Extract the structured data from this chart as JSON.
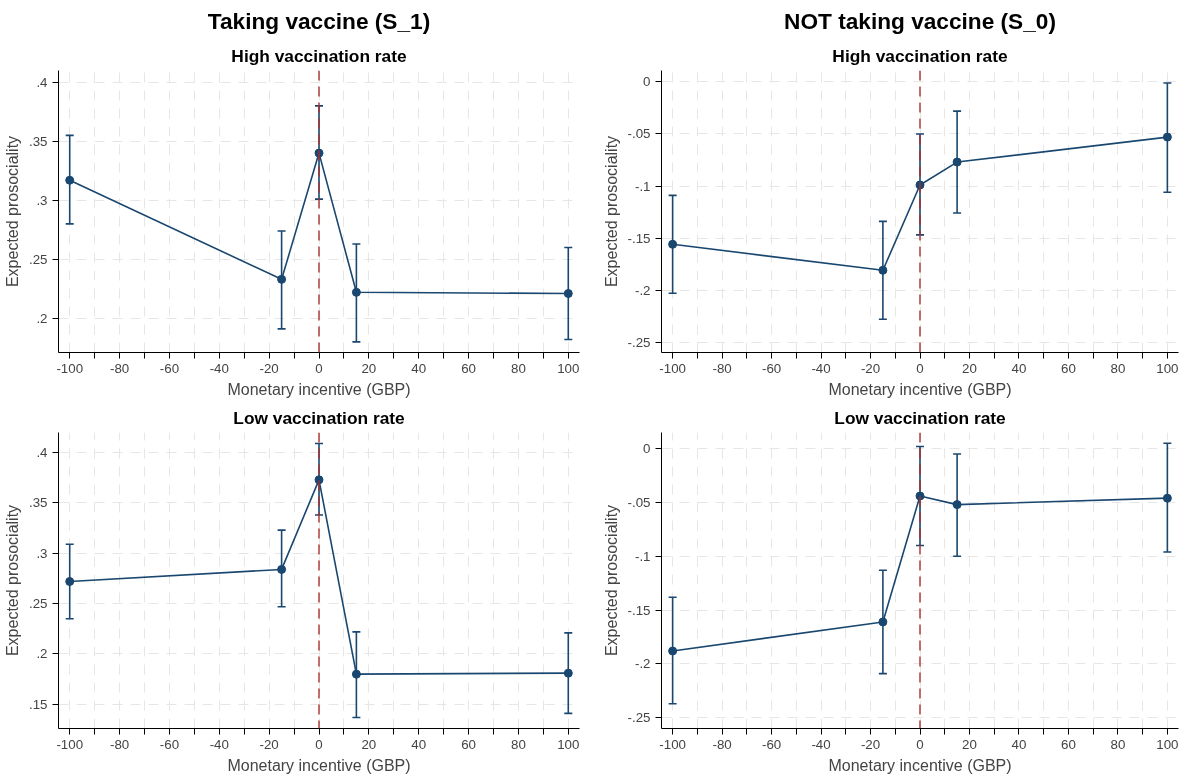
{
  "chart_data": [
    {
      "type": "line",
      "title": "Taking vaccine (S_1)",
      "subtitle": "High vaccination rate",
      "xlabel": "Monetary incentive (GBP)",
      "ylabel": "Expected prosociality",
      "marker": "circle",
      "line_style": "solid",
      "grid": true,
      "x": [
        -100,
        -15,
        0,
        15,
        100
      ],
      "series": [
        {
          "color": "#1a476f",
          "values": [
            0.317,
            0.233,
            0.34,
            0.222,
            0.221
          ],
          "errors": [
            [
              0.28,
              0.355
            ],
            [
              0.191,
              0.274
            ],
            [
              0.301,
              0.38
            ],
            [
              0.18,
              0.263
            ],
            [
              0.182,
              0.26
            ]
          ]
        }
      ],
      "xlim": [
        -104.5,
        104.5
      ],
      "ylim": [
        0.171,
        0.41
      ],
      "xticks": [
        -100,
        {
          "value": -90,
          "label": null
        },
        -80,
        {
          "value": -70,
          "label": null
        },
        -60,
        {
          "value": -50,
          "label": null
        },
        -40,
        {
          "value": -30,
          "label": null
        },
        -20,
        {
          "value": -10,
          "label": null
        },
        0,
        {
          "value": 10,
          "label": null
        },
        20,
        {
          "value": 30,
          "label": null
        },
        40,
        {
          "value": 50,
          "label": null
        },
        60,
        {
          "value": 70,
          "label": null
        },
        80,
        {
          "value": 90,
          "label": null
        },
        100
      ],
      "yticks": [
        {
          "value": 0.2,
          "label": ".2"
        },
        {
          "value": 0.25,
          "label": ".25"
        },
        {
          "value": 0.3,
          "label": ".3"
        },
        {
          "value": 0.35,
          "label": ".35"
        },
        {
          "value": 0.4,
          "label": ".4"
        }
      ],
      "ref_lines": [
        {
          "axis": "x",
          "value": 0,
          "color": "#a8302f",
          "line_style": "dashed"
        }
      ]
    },
    {
      "type": "line",
      "title": "NOT taking vaccine (S_0)",
      "subtitle": "High vaccination rate",
      "xlabel": "Monetary incentive (GBP)",
      "ylabel": "Expected prosociality",
      "marker": "circle",
      "line_style": "solid",
      "grid": true,
      "x": [
        -100,
        -15,
        0,
        15,
        100
      ],
      "series": [
        {
          "color": "#1a476f",
          "values": [
            -0.156,
            -0.181,
            -0.099,
            -0.077,
            -0.053
          ],
          "errors": [
            [
              -0.203,
              -0.109
            ],
            [
              -0.228,
              -0.134
            ],
            [
              -0.147,
              -0.05
            ],
            [
              -0.126,
              -0.028
            ],
            [
              -0.106,
              -0.001
            ]
          ]
        }
      ],
      "xlim": [
        -104.5,
        104.5
      ],
      "ylim": [
        -0.26,
        0.011
      ],
      "xticks": [
        -100,
        {
          "value": -90,
          "label": null
        },
        -80,
        {
          "value": -70,
          "label": null
        },
        -60,
        {
          "value": -50,
          "label": null
        },
        -40,
        {
          "value": -30,
          "label": null
        },
        -20,
        {
          "value": -10,
          "label": null
        },
        0,
        {
          "value": 10,
          "label": null
        },
        20,
        {
          "value": 30,
          "label": null
        },
        40,
        {
          "value": 50,
          "label": null
        },
        60,
        {
          "value": 70,
          "label": null
        },
        80,
        {
          "value": 90,
          "label": null
        },
        100
      ],
      "yticks": [
        {
          "value": -0.25,
          "label": "-.25"
        },
        {
          "value": -0.2,
          "label": "-.2"
        },
        {
          "value": -0.15,
          "label": "-.15"
        },
        {
          "value": -0.1,
          "label": "-.1"
        },
        {
          "value": -0.05,
          "label": "-.05"
        },
        0
      ],
      "ref_lines": [
        {
          "axis": "x",
          "value": 0,
          "color": "#a8302f",
          "line_style": "dashed"
        }
      ]
    },
    {
      "type": "line",
      "subtitle": "Low vaccination rate",
      "xlabel": "Monetary incentive (GBP)",
      "ylabel": "Expected prosociality",
      "marker": "circle",
      "line_style": "solid",
      "grid": true,
      "x": [
        -100,
        -15,
        0,
        15,
        100
      ],
      "series": [
        {
          "color": "#1a476f",
          "values": [
            0.272,
            0.284,
            0.373,
            0.18,
            0.181
          ],
          "errors": [
            [
              0.235,
              0.309
            ],
            [
              0.247,
              0.323
            ],
            [
              0.338,
              0.409
            ],
            [
              0.137,
              0.222
            ],
            [
              0.141,
              0.221
            ]
          ]
        }
      ],
      "xlim": [
        -104.5,
        104.5
      ],
      "ylim": [
        0.126,
        0.42
      ],
      "xticks": [
        -100,
        {
          "value": -90,
          "label": null
        },
        -80,
        {
          "value": -70,
          "label": null
        },
        -60,
        {
          "value": -50,
          "label": null
        },
        -40,
        {
          "value": -30,
          "label": null
        },
        -20,
        {
          "value": -10,
          "label": null
        },
        0,
        {
          "value": 10,
          "label": null
        },
        20,
        {
          "value": 30,
          "label": null
        },
        40,
        {
          "value": 50,
          "label": null
        },
        60,
        {
          "value": 70,
          "label": null
        },
        80,
        {
          "value": 90,
          "label": null
        },
        100
      ],
      "yticks": [
        {
          "value": 0.15,
          "label": ".15"
        },
        {
          "value": 0.2,
          "label": ".2"
        },
        {
          "value": 0.25,
          "label": ".25"
        },
        {
          "value": 0.3,
          "label": ".3"
        },
        {
          "value": 0.35,
          "label": ".35"
        },
        {
          "value": 0.4,
          "label": ".4"
        }
      ],
      "ref_lines": [
        {
          "axis": "x",
          "value": 0,
          "color": "#a8302f",
          "line_style": "dashed"
        }
      ]
    },
    {
      "type": "line",
      "subtitle": "Low vaccination rate",
      "xlabel": "Monetary incentive (GBP)",
      "ylabel": "Expected prosociality",
      "marker": "circle",
      "line_style": "solid",
      "grid": true,
      "x": [
        -100,
        -15,
        0,
        15,
        100
      ],
      "series": [
        {
          "color": "#1a476f",
          "values": [
            -0.188,
            -0.161,
            -0.044,
            -0.052,
            -0.046
          ],
          "errors": [
            [
              -0.237,
              -0.138
            ],
            [
              -0.209,
              -0.113
            ],
            [
              -0.09,
              0.002
            ],
            [
              -0.1,
              -0.005
            ],
            [
              -0.096,
              0.005
            ]
          ]
        }
      ],
      "xlim": [
        -104.5,
        104.5
      ],
      "ylim": [
        -0.26,
        0.015
      ],
      "xticks": [
        -100,
        {
          "value": -90,
          "label": null
        },
        -80,
        {
          "value": -70,
          "label": null
        },
        -60,
        {
          "value": -50,
          "label": null
        },
        -40,
        {
          "value": -30,
          "label": null
        },
        -20,
        {
          "value": -10,
          "label": null
        },
        0,
        {
          "value": 10,
          "label": null
        },
        20,
        {
          "value": 30,
          "label": null
        },
        40,
        {
          "value": 50,
          "label": null
        },
        60,
        {
          "value": 70,
          "label": null
        },
        80,
        {
          "value": 90,
          "label": null
        },
        100
      ],
      "yticks": [
        {
          "value": -0.25,
          "label": "-.25"
        },
        {
          "value": -0.2,
          "label": "-.2"
        },
        {
          "value": -0.15,
          "label": "-.15"
        },
        {
          "value": -0.1,
          "label": "-.1"
        },
        {
          "value": -0.05,
          "label": "-.05"
        },
        0
      ],
      "ref_lines": [
        {
          "axis": "x",
          "value": 0,
          "color": "#a8302f",
          "line_style": "dashed"
        }
      ]
    }
  ]
}
